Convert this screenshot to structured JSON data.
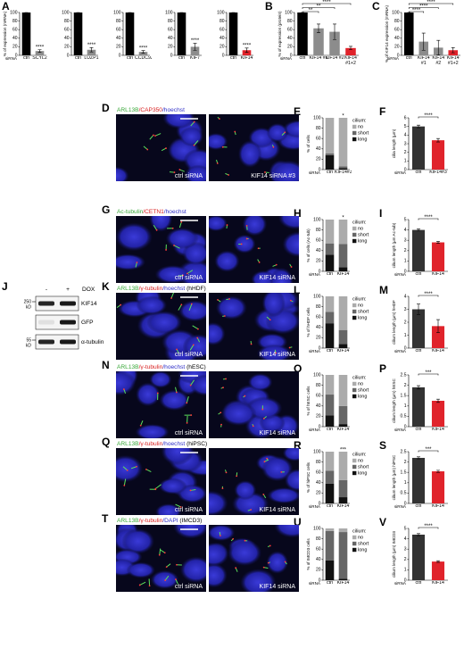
{
  "chart_data": [
    {
      "type": "bar",
      "panel": "A",
      "ylabel": "% of expression (mRNA)",
      "xlabel": "siRNA",
      "categories": [
        "ctrl",
        "SCYL2"
      ],
      "values": [
        100,
        10
      ],
      "errors": [
        0,
        3
      ],
      "colors": [
        "#000000",
        "#8c8c8c"
      ],
      "significance": [
        null,
        "****"
      ],
      "ylim": [
        0,
        100
      ],
      "yticks": [
        0,
        20,
        40,
        60,
        80,
        100
      ]
    },
    {
      "type": "bar",
      "categories": [
        "ctrl",
        "LUZP1"
      ],
      "values": [
        100,
        13
      ],
      "errors": [
        0,
        5
      ],
      "colors": [
        "#000000",
        "#8c8c8c"
      ],
      "significance": [
        null,
        "****"
      ],
      "ylim": [
        0,
        100
      ],
      "yticks": [
        0,
        20,
        40,
        60,
        80,
        100
      ]
    },
    {
      "type": "bar",
      "categories": [
        "ctrl",
        "CCDC92"
      ],
      "values": [
        100,
        8
      ],
      "errors": [
        0,
        3
      ],
      "colors": [
        "#000000",
        "#8c8c8c"
      ],
      "significance": [
        null,
        "****"
      ],
      "ylim": [
        0,
        100
      ],
      "yticks": [
        0,
        20,
        40,
        60,
        80,
        100
      ]
    },
    {
      "type": "bar",
      "categories": [
        "ctrl",
        "KIF7"
      ],
      "values": [
        100,
        20
      ],
      "errors": [
        0,
        8
      ],
      "colors": [
        "#000000",
        "#8c8c8c"
      ],
      "significance": [
        null,
        "****"
      ],
      "ylim": [
        0,
        100
      ],
      "yticks": [
        0,
        20,
        40,
        60,
        80,
        100
      ]
    },
    {
      "type": "bar",
      "categories": [
        "ctrl",
        "KIF14"
      ],
      "values": [
        100,
        12
      ],
      "errors": [
        0,
        5
      ],
      "colors": [
        "#000000",
        "#e0232b"
      ],
      "significance": [
        null,
        "****"
      ],
      "ylim": [
        0,
        100
      ],
      "yticks": [
        0,
        20,
        40,
        60,
        80,
        100
      ]
    },
    {
      "type": "bar",
      "panel": "B",
      "ylabel": "% of expression (protein)",
      "xlabel": "siRNA",
      "categories": [
        "ctrl",
        "KIF14 #1",
        "KIF14 #2",
        "KIF14 #1+2"
      ],
      "values": [
        100,
        63,
        55,
        17
      ],
      "errors": [
        0,
        10,
        18,
        4
      ],
      "colors": [
        "#000000",
        "#8c8c8c",
        "#8c8c8c",
        "#e0232b"
      ],
      "significance": [
        null,
        "**",
        "**",
        "****"
      ],
      "brackets": true,
      "ylim": [
        0,
        100
      ],
      "yticks": [
        0,
        20,
        40,
        60,
        80,
        100
      ]
    },
    {
      "type": "bar",
      "panel": "C",
      "ylabel": "% of KIF14 expression (mRNA)",
      "xlabel": "siRNA",
      "categories": [
        "ctrl",
        "KIF14 #1",
        "KIF14 #2",
        "KIF14 #1+2"
      ],
      "values": [
        100,
        32,
        18,
        12
      ],
      "errors": [
        0,
        20,
        17,
        6
      ],
      "colors": [
        "#000000",
        "#8c8c8c",
        "#8c8c8c",
        "#e0232b"
      ],
      "significance": [
        null,
        "****",
        "****",
        "****"
      ],
      "brackets": true,
      "ylim": [
        0,
        100
      ],
      "yticks": [
        0,
        20,
        40,
        60,
        80,
        100
      ]
    },
    {
      "type": "stacked_bar",
      "panel": "E",
      "ylabel": "% of cells",
      "xlabel": "siRNA",
      "categories": [
        "ctrl",
        "KIF14#3"
      ],
      "series": [
        {
          "name": "long",
          "color": "#111111",
          "values": [
            28,
            3
          ]
        },
        {
          "name": "short",
          "color": "#666666",
          "values": [
            3,
            3
          ]
        },
        {
          "name": "no",
          "color": "#ababab",
          "values": [
            69,
            94
          ]
        }
      ],
      "legend_title": "cilium:",
      "significance": [
        null,
        "*"
      ],
      "ylim": [
        0,
        100
      ],
      "yticks": [
        0,
        20,
        40,
        60,
        80,
        100
      ]
    },
    {
      "type": "bar",
      "panel": "F",
      "ylabel": "cilia length (µm)",
      "xlabel": "siRNA",
      "categories": [
        "ctrl",
        "KIF14#3"
      ],
      "values": [
        5,
        3.4
      ],
      "errors": [
        0.15,
        0.2
      ],
      "colors": [
        "#333333",
        "#e0232b"
      ],
      "significance": [
        null,
        "****"
      ],
      "brackets": true,
      "ylim": [
        0,
        6
      ],
      "yticks": [
        0,
        1,
        2,
        3,
        4,
        5,
        6
      ]
    },
    {
      "type": "stacked_bar",
      "panel": "H",
      "ylabel": "% of cells (Ac-tub)",
      "xlabel": "siRNA",
      "categories": [
        "ctrl",
        "KIF14"
      ],
      "series": [
        {
          "name": "long",
          "color": "#111111",
          "values": [
            32,
            8
          ]
        },
        {
          "name": "short",
          "color": "#666666",
          "values": [
            22,
            45
          ]
        },
        {
          "name": "no",
          "color": "#ababab",
          "values": [
            46,
            47
          ]
        }
      ],
      "legend_title": "cilium:",
      "significance": [
        null,
        "*"
      ],
      "ylim": [
        0,
        100
      ],
      "yticks": [
        0,
        20,
        40,
        60,
        80,
        100
      ]
    },
    {
      "type": "bar",
      "panel": "I",
      "ylabel": "cilium length (µm Ac-tub)",
      "xlabel": "siRNA",
      "categories": [
        "ctrl",
        "KIF14"
      ],
      "values": [
        4,
        2.8
      ],
      "errors": [
        0.1,
        0.1
      ],
      "colors": [
        "#333333",
        "#e0232b"
      ],
      "significance": [
        null,
        "****"
      ],
      "brackets": true,
      "ylim": [
        0,
        5
      ],
      "yticks": [
        0,
        1,
        2,
        3,
        4,
        5
      ]
    },
    {
      "type": "stacked_bar",
      "panel": "L",
      "ylabel": "% of hHDF cells",
      "xlabel": "siRNA",
      "categories": [
        "ctrl",
        "KIF14"
      ],
      "series": [
        {
          "name": "long",
          "color": "#111111",
          "values": [
            48,
            8
          ]
        },
        {
          "name": "short",
          "color": "#666666",
          "values": [
            22,
            27
          ]
        },
        {
          "name": "no",
          "color": "#ababab",
          "values": [
            30,
            65
          ]
        }
      ],
      "legend_title": "cilium:",
      "ylim": [
        0,
        100
      ],
      "yticks": [
        0,
        20,
        40,
        60,
        80,
        100
      ]
    },
    {
      "type": "bar",
      "panel": "M",
      "ylabel": "cilium length (µm) hHDF",
      "xlabel": "siRNA",
      "categories": [
        "ctrl",
        "KIF14"
      ],
      "values": [
        3,
        1.7
      ],
      "errors": [
        0.4,
        0.5
      ],
      "colors": [
        "#333333",
        "#e0232b"
      ],
      "significance": [
        null,
        "****"
      ],
      "brackets": true,
      "ylim": [
        0,
        4
      ],
      "yticks": [
        0,
        1,
        2,
        3,
        4
      ]
    },
    {
      "type": "stacked_bar",
      "panel": "O",
      "ylabel": "% of hESC cells",
      "xlabel": "siRNA",
      "categories": [
        "ctrl",
        "KIF14"
      ],
      "series": [
        {
          "name": "long",
          "color": "#111111",
          "values": [
            22,
            5
          ]
        },
        {
          "name": "short",
          "color": "#666666",
          "values": [
            40,
            35
          ]
        },
        {
          "name": "no",
          "color": "#ababab",
          "values": [
            38,
            60
          ]
        }
      ],
      "legend_title": "cilium:",
      "ylim": [
        0,
        100
      ],
      "yticks": [
        0,
        20,
        40,
        60,
        80,
        100
      ]
    },
    {
      "type": "bar",
      "panel": "P",
      "ylabel": "cilium length (µm) hESC",
      "xlabel": "siRNA",
      "categories": [
        "ctrl",
        "KIF14"
      ],
      "values": [
        1.9,
        1.25
      ],
      "errors": [
        0.08,
        0.08
      ],
      "colors": [
        "#333333",
        "#e0232b"
      ],
      "significance": [
        null,
        "***"
      ],
      "brackets": true,
      "ylim": [
        0,
        2.5
      ],
      "yticks": [
        0,
        0.5,
        1,
        1.5,
        2,
        2.5
      ]
    },
    {
      "type": "stacked_bar",
      "panel": "R",
      "ylabel": "% of hiPSC cells",
      "xlabel": "siRNA",
      "categories": [
        "ctrl",
        "KIF14"
      ],
      "series": [
        {
          "name": "long",
          "color": "#111111",
          "values": [
            38,
            12
          ]
        },
        {
          "name": "short",
          "color": "#666666",
          "values": [
            25,
            33
          ]
        },
        {
          "name": "no",
          "color": "#ababab",
          "values": [
            37,
            55
          ]
        }
      ],
      "legend_title": "cilium:",
      "significance": [
        null,
        "***"
      ],
      "ylim": [
        0,
        100
      ],
      "yticks": [
        0,
        20,
        40,
        60,
        80,
        100
      ]
    },
    {
      "type": "bar",
      "panel": "S",
      "ylabel": "cilium length (µm) hiPSC",
      "xlabel": "siRNA",
      "categories": [
        "ctrl",
        "KIF14"
      ],
      "values": [
        2.2,
        1.55
      ],
      "errors": [
        0.05,
        0.05
      ],
      "colors": [
        "#333333",
        "#e0232b"
      ],
      "significance": [
        null,
        "***"
      ],
      "brackets": true,
      "ylim": [
        0,
        2.5
      ],
      "yticks": [
        0,
        0.5,
        1,
        1.5,
        2,
        2.5
      ]
    },
    {
      "type": "stacked_bar",
      "panel": "U",
      "ylabel": "% of IMCD3 cells",
      "xlabel": "siRNA",
      "categories": [
        "ctrl",
        "KIF14"
      ],
      "series": [
        {
          "name": "long",
          "color": "#111111",
          "values": [
            38,
            3
          ]
        },
        {
          "name": "short",
          "color": "#666666",
          "values": [
            57,
            90
          ]
        },
        {
          "name": "no",
          "color": "#ababab",
          "values": [
            5,
            7
          ]
        }
      ],
      "legend_title": "cilium:",
      "ylim": [
        0,
        100
      ],
      "yticks": [
        0,
        20,
        40,
        60,
        80,
        100
      ]
    },
    {
      "type": "bar",
      "panel": "V",
      "ylabel": "cilium length (µm) IMCD3",
      "xlabel": "siRNA",
      "categories": [
        "ctrl",
        "KIF14"
      ],
      "values": [
        4.4,
        1.8
      ],
      "errors": [
        0.1,
        0.08
      ],
      "colors": [
        "#333333",
        "#e0232b"
      ],
      "significance": [
        null,
        "****"
      ],
      "brackets": true,
      "ylim": [
        0,
        5
      ],
      "yticks": [
        0,
        1,
        2,
        3,
        4,
        5
      ]
    }
  ],
  "images": [
    {
      "panel": "D",
      "stain": [
        {
          "text": "ARL13B",
          "color": "#3aa83a"
        },
        {
          "text": "/CAP350",
          "color": "#d82020"
        },
        {
          "text": "/hoechst",
          "color": "#3030c8"
        }
      ],
      "captions": [
        "ctrl siRNA",
        "KIF14 siRNA #3"
      ]
    },
    {
      "panel": "G",
      "stain": [
        {
          "text": "Ac-tubulin",
          "color": "#3aa83a"
        },
        {
          "text": "/CETN1",
          "color": "#d82020"
        },
        {
          "text": "/hoechst",
          "color": "#3030c8"
        }
      ],
      "captions": [
        "ctrl siRNA",
        "KIF14 siRNA"
      ]
    },
    {
      "panel": "K",
      "stain": [
        {
          "text": "ARL13B",
          "color": "#3aa83a"
        },
        {
          "text": "/γ-tubulin",
          "color": "#d82020"
        },
        {
          "text": "/hoechst",
          "color": "#3030c8"
        },
        {
          "text": " (hHDF)",
          "color": "#000000"
        }
      ],
      "captions": [
        "ctrl siRNA",
        "KIF14 siRNA"
      ]
    },
    {
      "panel": "N",
      "stain": [
        {
          "text": "ARL13B",
          "color": "#3aa83a"
        },
        {
          "text": "/γ-tubulin",
          "color": "#d82020"
        },
        {
          "text": "/hoechst",
          "color": "#3030c8"
        },
        {
          "text": " (hESC)",
          "color": "#000000"
        }
      ],
      "captions": [
        "ctrl siRNA",
        "KIF14 siRNA"
      ]
    },
    {
      "panel": "Q",
      "stain": [
        {
          "text": "ARL13B",
          "color": "#3aa83a"
        },
        {
          "text": "/γ-tubulin",
          "color": "#d82020"
        },
        {
          "text": "/hoechst",
          "color": "#3030c8"
        },
        {
          "text": " (hiPSC)",
          "color": "#000000"
        }
      ],
      "captions": [
        "ctrl siRNA",
        "KIF14 siRNA"
      ]
    },
    {
      "panel": "T",
      "stain": [
        {
          "text": "ARL13B",
          "color": "#3aa83a"
        },
        {
          "text": "/γ-tubulin",
          "color": "#d82020"
        },
        {
          "text": "/DAPI",
          "color": "#3030c8"
        },
        {
          "text": " (IMCD3)",
          "color": "#000000"
        }
      ],
      "captions": [
        "ctrl siRNA",
        "KIF14 siRNA"
      ]
    }
  ],
  "blot": {
    "panel": "J",
    "lanes": [
      "-",
      "+"
    ],
    "treatment": "DOX",
    "markers": [
      250,
      55
    ],
    "marker_unit": "kD",
    "bands": [
      "KIF14",
      "GFP",
      "α-tubulin"
    ]
  }
}
